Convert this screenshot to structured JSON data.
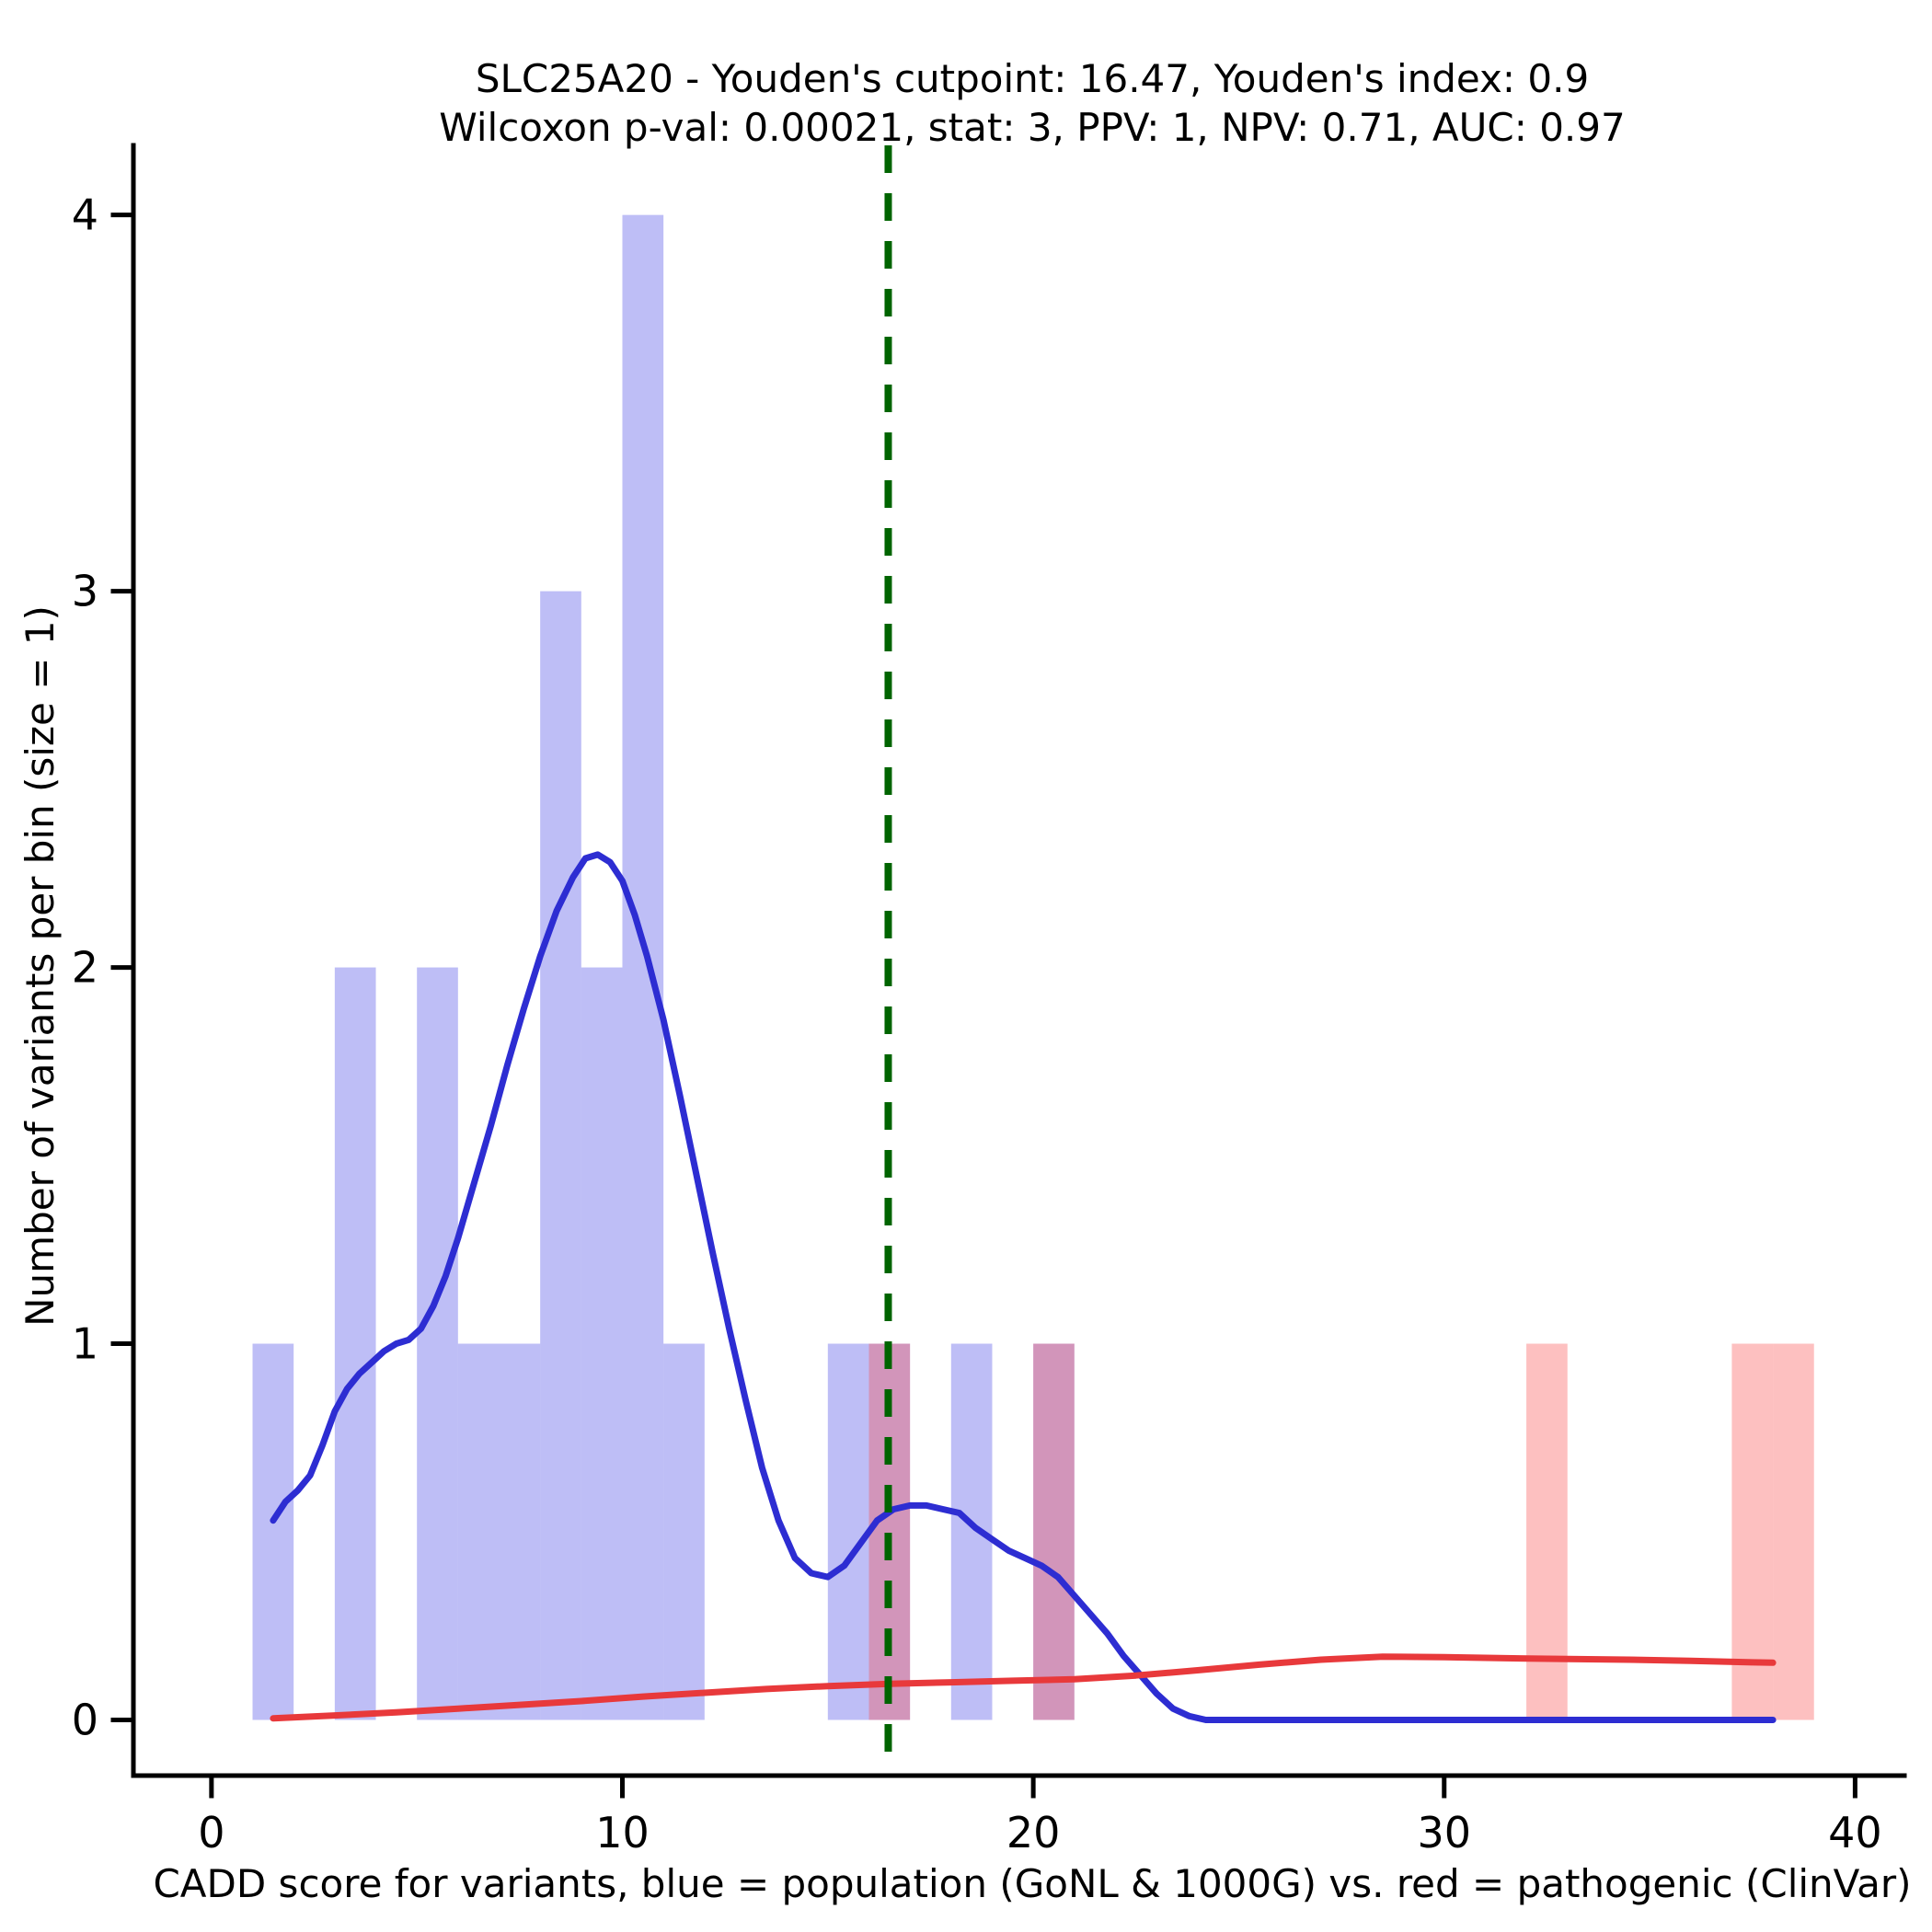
{
  "title_line1": "SLC25A20 - Youden's cutpoint: 16.47, Youden's index: 0.9",
  "title_line2": "Wilcoxon p-val: 0.00021, stat: 3, PPV: 1, NPV: 0.71, AUC: 0.97",
  "stats": {
    "gene": "SLC25A20",
    "youden_cutpoint": 16.47,
    "youden_index": 0.9,
    "wilcoxon_p_val": 0.00021,
    "stat": 3,
    "ppv": 1,
    "npv": 0.71,
    "auc": 0.97
  },
  "chart_data": {
    "type": "bar",
    "subtype": "histogram-with-density",
    "title": "SLC25A20 - Youden's cutpoint: 16.47, Youden's index: 0.9",
    "subtitle": "Wilcoxon p-val: 0.00021, stat: 3, PPV: 1, NPV: 0.71, AUC: 0.97",
    "xlabel": "CADD score for variants, blue = population (GoNL & 1000G) vs. red = pathogenic (ClinVar)",
    "ylabel": "Number of variants per bin (size = 1)",
    "xlim": [
      -1.9,
      41.2
    ],
    "ylim": [
      -0.148,
      4.185
    ],
    "xticks": [
      0,
      10,
      20,
      30,
      40
    ],
    "yticks": [
      0,
      1,
      2,
      3,
      4
    ],
    "grid": false,
    "legend": "none",
    "cutpoint_line": {
      "x": 16.47,
      "color": "#006400",
      "dash": "30 22",
      "width": 8
    },
    "series": [
      {
        "name": "population (GoNL & 1000G) histogram",
        "role": "histogram",
        "color": "rgba(70,70,230,0.35)",
        "bins": [
          [
            1,
            2,
            1
          ],
          [
            3,
            4,
            2
          ],
          [
            5,
            6,
            2
          ],
          [
            6,
            7,
            1
          ],
          [
            7,
            8,
            1
          ],
          [
            8,
            9,
            3
          ],
          [
            9,
            10,
            2
          ],
          [
            10,
            11,
            4
          ],
          [
            11,
            12,
            1
          ],
          [
            15,
            16,
            1
          ],
          [
            16,
            17,
            1
          ],
          [
            18,
            19,
            1
          ],
          [
            20,
            21,
            1
          ]
        ]
      },
      {
        "name": "pathogenic (ClinVar) histogram",
        "role": "histogram",
        "color": "rgba(250,75,75,0.35)",
        "bins": [
          [
            16,
            17,
            1
          ],
          [
            20,
            21,
            1
          ],
          [
            32,
            33,
            1
          ],
          [
            37,
            38,
            1
          ],
          [
            38,
            39,
            1
          ]
        ]
      },
      {
        "name": "population density",
        "role": "density",
        "color": "#2d2dd2",
        "points": [
          [
            1.5,
            0.53
          ],
          [
            1.8,
            0.58
          ],
          [
            2.1,
            0.61
          ],
          [
            2.4,
            0.65
          ],
          [
            2.7,
            0.73
          ],
          [
            3.0,
            0.82
          ],
          [
            3.3,
            0.88
          ],
          [
            3.6,
            0.92
          ],
          [
            3.9,
            0.95
          ],
          [
            4.2,
            0.98
          ],
          [
            4.5,
            1.0
          ],
          [
            4.8,
            1.01
          ],
          [
            5.1,
            1.04
          ],
          [
            5.4,
            1.1
          ],
          [
            5.7,
            1.18
          ],
          [
            6.0,
            1.28
          ],
          [
            6.4,
            1.43
          ],
          [
            6.8,
            1.58
          ],
          [
            7.2,
            1.74
          ],
          [
            7.6,
            1.89
          ],
          [
            8.0,
            2.03
          ],
          [
            8.4,
            2.15
          ],
          [
            8.8,
            2.24
          ],
          [
            9.1,
            2.29
          ],
          [
            9.4,
            2.3
          ],
          [
            9.7,
            2.28
          ],
          [
            10.0,
            2.23
          ],
          [
            10.3,
            2.14
          ],
          [
            10.6,
            2.03
          ],
          [
            11.0,
            1.86
          ],
          [
            11.4,
            1.66
          ],
          [
            11.8,
            1.45
          ],
          [
            12.2,
            1.24
          ],
          [
            12.6,
            1.04
          ],
          [
            13.0,
            0.85
          ],
          [
            13.4,
            0.67
          ],
          [
            13.8,
            0.53
          ],
          [
            14.2,
            0.43
          ],
          [
            14.6,
            0.39
          ],
          [
            15.0,
            0.38
          ],
          [
            15.4,
            0.41
          ],
          [
            15.8,
            0.47
          ],
          [
            16.2,
            0.53
          ],
          [
            16.6,
            0.56
          ],
          [
            17.0,
            0.57
          ],
          [
            17.4,
            0.57
          ],
          [
            17.8,
            0.56
          ],
          [
            18.2,
            0.55
          ],
          [
            18.6,
            0.51
          ],
          [
            19.0,
            0.48
          ],
          [
            19.4,
            0.45
          ],
          [
            19.8,
            0.43
          ],
          [
            20.2,
            0.41
          ],
          [
            20.6,
            0.38
          ],
          [
            21.0,
            0.33
          ],
          [
            21.4,
            0.28
          ],
          [
            21.8,
            0.23
          ],
          [
            22.2,
            0.17
          ],
          [
            22.6,
            0.12
          ],
          [
            23.0,
            0.07
          ],
          [
            23.4,
            0.03
          ],
          [
            23.8,
            0.01
          ],
          [
            24.2,
            0.0
          ],
          [
            38.0,
            0.0
          ]
        ]
      },
      {
        "name": "pathogenic density",
        "role": "density",
        "color": "#e8393b",
        "points": [
          [
            1.5,
            0.004
          ],
          [
            3.0,
            0.012
          ],
          [
            4.5,
            0.02
          ],
          [
            6.0,
            0.03
          ],
          [
            7.5,
            0.04
          ],
          [
            9.0,
            0.05
          ],
          [
            10.5,
            0.062
          ],
          [
            12.0,
            0.072
          ],
          [
            13.5,
            0.082
          ],
          [
            15.0,
            0.09
          ],
          [
            16.5,
            0.096
          ],
          [
            18.0,
            0.1
          ],
          [
            19.5,
            0.104
          ],
          [
            21.0,
            0.108
          ],
          [
            22.5,
            0.118
          ],
          [
            24.0,
            0.132
          ],
          [
            25.5,
            0.147
          ],
          [
            27.0,
            0.16
          ],
          [
            28.5,
            0.168
          ],
          [
            30.0,
            0.167
          ],
          [
            31.5,
            0.164
          ],
          [
            33.0,
            0.162
          ],
          [
            34.5,
            0.16
          ],
          [
            36.0,
            0.157
          ],
          [
            37.5,
            0.153
          ],
          [
            38.0,
            0.152
          ]
        ]
      }
    ]
  }
}
